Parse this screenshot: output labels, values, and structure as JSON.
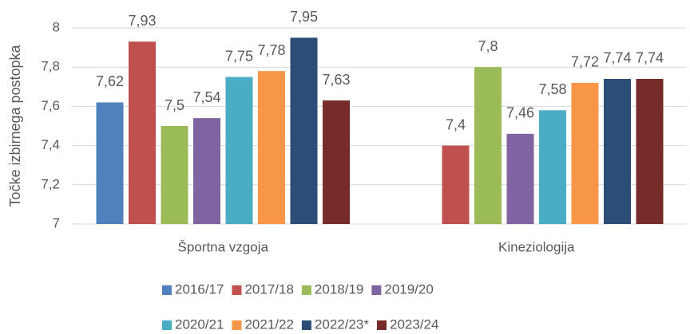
{
  "chart_data": {
    "type": "bar",
    "ylabel": "Točke izbirnega postopka",
    "categories": [
      "Športna vzgoja",
      "Kineziologija"
    ],
    "series": [
      {
        "name": "2016/17",
        "color": "#4f81bd",
        "values": [
          7.62,
          null
        ],
        "value_labels": [
          "7,62",
          null
        ]
      },
      {
        "name": "2017/18",
        "color": "#c0504d",
        "values": [
          7.93,
          7.4
        ],
        "value_labels": [
          "7,93",
          "7,4"
        ]
      },
      {
        "name": "2018/19",
        "color": "#9bbb59",
        "values": [
          7.5,
          7.8
        ],
        "value_labels": [
          "7,5",
          "7,8"
        ]
      },
      {
        "name": "2019/20",
        "color": "#8064a2",
        "values": [
          7.54,
          7.46
        ],
        "value_labels": [
          "7,54",
          "7,46"
        ]
      },
      {
        "name": "2020/21",
        "color": "#4bacc6",
        "values": [
          7.75,
          7.58
        ],
        "value_labels": [
          "7,75",
          "7,58"
        ]
      },
      {
        "name": "2021/22",
        "color": "#f79646",
        "values": [
          7.78,
          7.72
        ],
        "value_labels": [
          "7,78",
          "7,72"
        ]
      },
      {
        "name": "2022/23*",
        "color": "#2c4d75",
        "values": [
          7.95,
          7.74
        ],
        "value_labels": [
          "7,95",
          "7,74"
        ]
      },
      {
        "name": "2023/24",
        "color": "#772c2a",
        "values": [
          7.63,
          7.74
        ],
        "value_labels": [
          "7,63",
          "7,74"
        ]
      }
    ],
    "ylim": [
      7,
      8
    ],
    "yticks": [
      7,
      {
        "value": 7.2,
        "label": "7,2"
      },
      {
        "value": 7.4,
        "label": "7,4"
      },
      {
        "value": 7.6,
        "label": "7,6"
      },
      {
        "value": 7.8,
        "label": "7,8"
      },
      8
    ],
    "grid": true
  }
}
